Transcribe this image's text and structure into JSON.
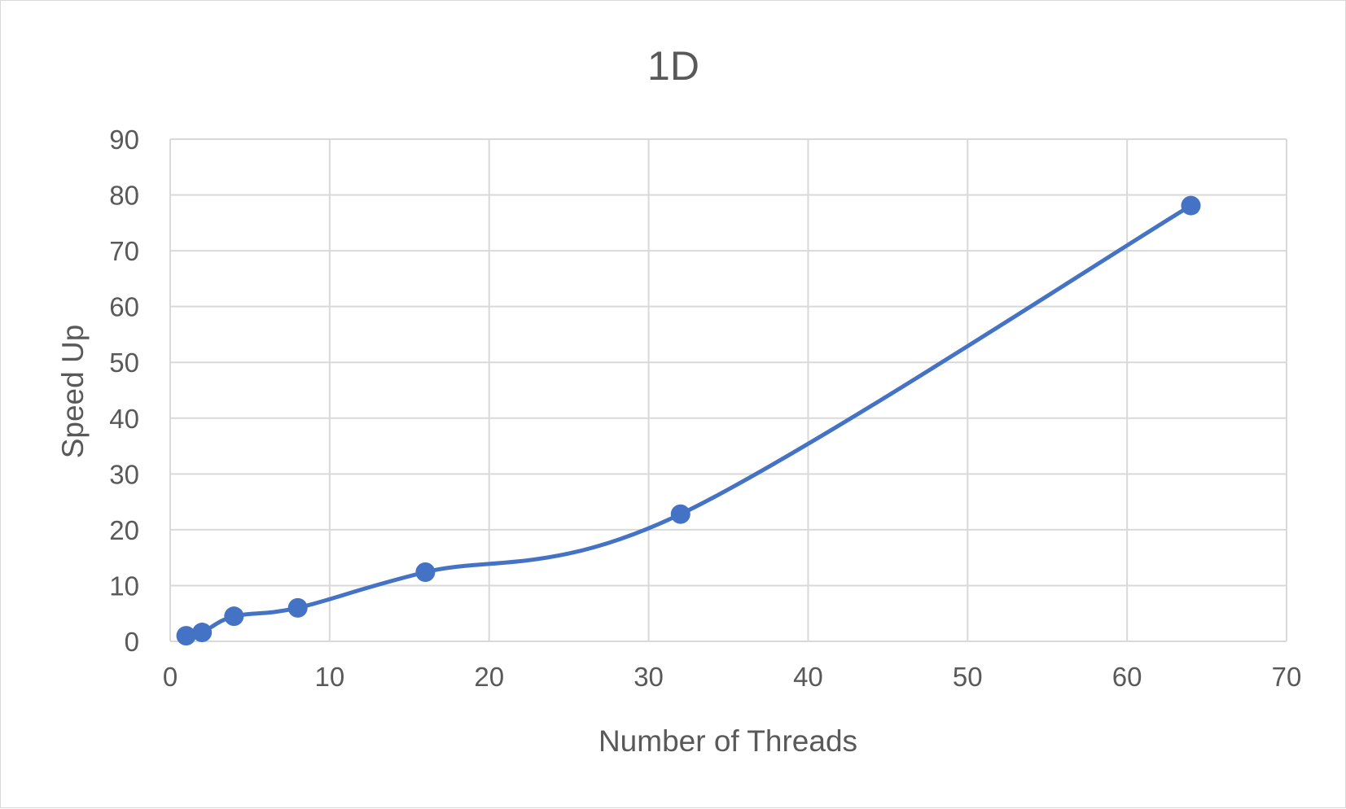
{
  "chart_data": {
    "type": "scatter",
    "title": "1D",
    "xlabel": "Number of Threads",
    "ylabel": "Speed Up",
    "xlim": [
      0,
      70
    ],
    "ylim": [
      0,
      90
    ],
    "xticks": [
      0,
      10,
      20,
      30,
      40,
      50,
      60,
      70
    ],
    "yticks": [
      0,
      10,
      20,
      30,
      40,
      50,
      60,
      70,
      80,
      90
    ],
    "grid": true,
    "smooth_line": true,
    "legend": "none",
    "series": [
      {
        "color": "#4472c4",
        "points": [
          {
            "x": 1,
            "y": 1
          },
          {
            "x": 2,
            "y": 1.6
          },
          {
            "x": 4,
            "y": 4.5
          },
          {
            "x": 8,
            "y": 6
          },
          {
            "x": 16,
            "y": 12.4
          },
          {
            "x": 32,
            "y": 22.8
          },
          {
            "x": 64,
            "y": 78.1
          }
        ]
      }
    ],
    "gridColor": "#d9d9d9",
    "textColor": "#595959"
  }
}
